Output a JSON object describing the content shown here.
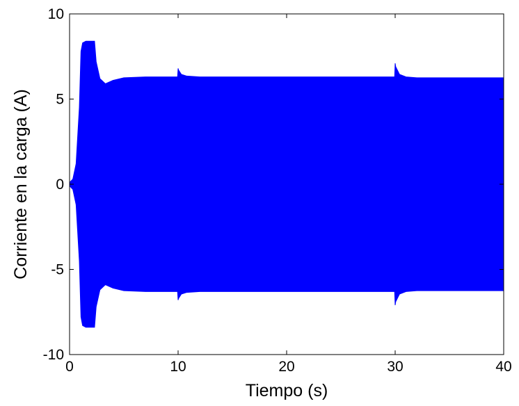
{
  "chart_data": {
    "type": "area",
    "title": "",
    "xlabel": "Tiempo (s)",
    "ylabel": "Corriente en la carga (A)",
    "xlim": [
      0,
      40
    ],
    "ylim": [
      -10,
      10
    ],
    "xticks": [
      0,
      10,
      20,
      30,
      40
    ],
    "yticks": [
      -10,
      -5,
      0,
      5,
      10
    ],
    "grid": false,
    "legend": "none",
    "color": "#0000ff",
    "series": [
      {
        "description": "envelope of oscillating current",
        "x": [
          0,
          0.3,
          0.6,
          0.9,
          1.05,
          1.2,
          1.5,
          2.3,
          2.45,
          2.8,
          3.3,
          4.0,
          5.0,
          7.0,
          9.95,
          10.0,
          10.05,
          10.3,
          10.8,
          12.0,
          20.0,
          29.95,
          30.0,
          30.05,
          30.4,
          31.0,
          32.0,
          35.0,
          40.0
        ],
        "upper": [
          0.1,
          0.3,
          1.2,
          4.5,
          7.8,
          8.3,
          8.4,
          8.4,
          7.2,
          6.2,
          5.9,
          6.1,
          6.25,
          6.3,
          6.3,
          6.8,
          6.7,
          6.45,
          6.35,
          6.3,
          6.3,
          6.3,
          7.1,
          6.9,
          6.45,
          6.3,
          6.25,
          6.25,
          6.25
        ],
        "lower": [
          -0.1,
          -0.3,
          -1.2,
          -4.5,
          -7.8,
          -8.3,
          -8.4,
          -8.4,
          -7.2,
          -6.2,
          -5.9,
          -6.1,
          -6.25,
          -6.3,
          -6.3,
          -6.8,
          -6.7,
          -6.45,
          -6.35,
          -6.3,
          -6.3,
          -6.3,
          -7.1,
          -6.9,
          -6.45,
          -6.3,
          -6.25,
          -6.25,
          -6.25
        ]
      }
    ]
  }
}
